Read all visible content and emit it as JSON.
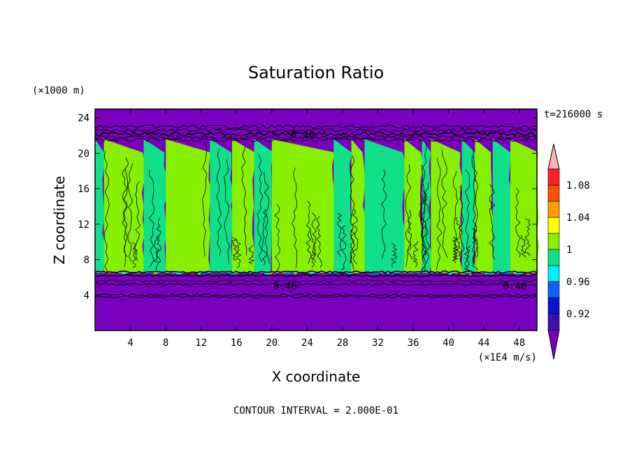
{
  "chart_data": {
    "type": "contour",
    "title": "Saturation Ratio",
    "xlabel": "X coordinate",
    "ylabel": "Z coordinate",
    "x_unit": "(×1E4 m/s)",
    "y_unit": "(×1000 m)",
    "time_label": "t=216000 s",
    "footer": "CONTOUR INTERVAL = 2.000E-01",
    "xlim": [
      0,
      50
    ],
    "ylim": [
      0,
      25
    ],
    "x_ticks": [
      4,
      8,
      12,
      16,
      20,
      24,
      28,
      32,
      36,
      40,
      44,
      48
    ],
    "y_ticks": [
      4,
      8,
      12,
      16,
      20,
      24
    ],
    "contour_labels": [
      {
        "text": "0.40",
        "x": 23.5,
        "y": 22.1
      },
      {
        "text": "0.40",
        "x": 21.5,
        "y": 5.0
      },
      {
        "text": "0.40",
        "x": 47.5,
        "y": 5.0
      }
    ],
    "colorbar": {
      "levels": [
        0.92,
        0.96,
        1,
        1.04,
        1.08
      ],
      "tick_labels": [
        "0.92",
        "0.96",
        "1",
        "1.04",
        "1.08"
      ],
      "colors": [
        "#7a00c0",
        "#3a10b0",
        "#0a14c8",
        "#1060ff",
        "#00f0ff",
        "#10e08a",
        "#86f000",
        "#ffff00",
        "#ffa000",
        "#ff5000",
        "#ff2020",
        "#ffb0b0"
      ]
    },
    "bands": [
      {
        "z_range": [
          0,
          6.5
        ],
        "value": "below 0.92",
        "color": "#7a00c0"
      },
      {
        "z_range": [
          6.5,
          21.6
        ],
        "value": "0.98–1.02 (alternating columns)",
        "colors": [
          "#10e08a",
          "#86f000"
        ]
      },
      {
        "z_range": [
          21.6,
          25
        ],
        "value": "below 0.92",
        "color": "#7a00c0"
      }
    ],
    "columns": [
      {
        "x": [
          0,
          1.0
        ],
        "value": "green"
      },
      {
        "x": [
          1.0,
          5.5
        ],
        "value": "lime"
      },
      {
        "x": [
          5.5,
          8.0
        ],
        "value": "green"
      },
      {
        "x": [
          8.0,
          13.0
        ],
        "value": "lime"
      },
      {
        "x": [
          13.0,
          15.5
        ],
        "value": "green"
      },
      {
        "x": [
          15.5,
          18.0
        ],
        "value": "lime"
      },
      {
        "x": [
          18.0,
          20.0
        ],
        "value": "green"
      },
      {
        "x": [
          20.0,
          27.0
        ],
        "value": "lime"
      },
      {
        "x": [
          27.0,
          29.0
        ],
        "value": "green"
      },
      {
        "x": [
          29.0,
          30.5
        ],
        "value": "lime"
      },
      {
        "x": [
          30.5,
          35.0
        ],
        "value": "green"
      },
      {
        "x": [
          35.0,
          37.0
        ],
        "value": "lime"
      },
      {
        "x": [
          37.0,
          38.0
        ],
        "value": "green"
      },
      {
        "x": [
          38.0,
          41.5
        ],
        "value": "lime"
      },
      {
        "x": [
          41.5,
          43.0
        ],
        "value": "green"
      },
      {
        "x": [
          43.0,
          45.0
        ],
        "value": "lime"
      },
      {
        "x": [
          45.0,
          47.0
        ],
        "value": "green"
      },
      {
        "x": [
          47.0,
          50.0
        ],
        "value": "lime"
      }
    ]
  }
}
